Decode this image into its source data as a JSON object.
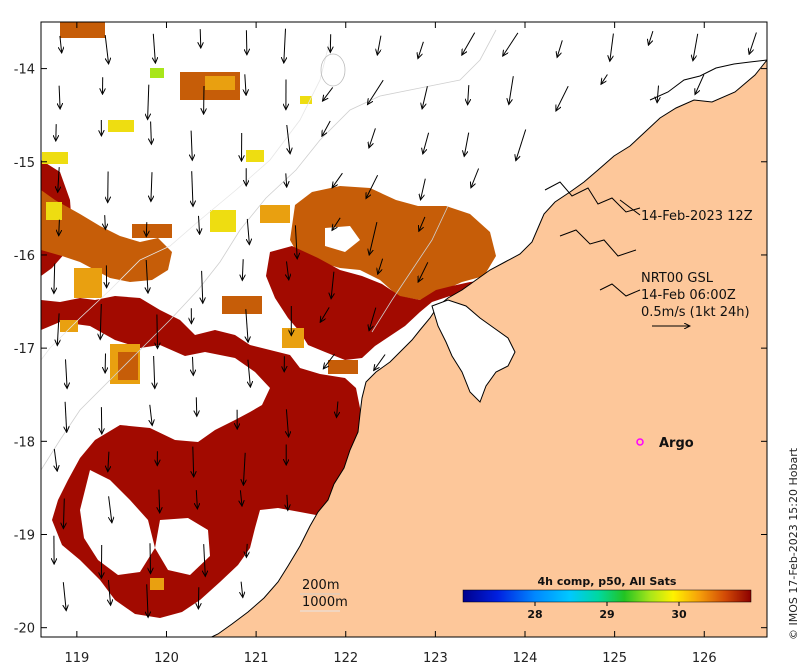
{
  "map": {
    "lon_ticks": [
      "119",
      "120",
      "121",
      "122",
      "123",
      "124",
      "125",
      "126"
    ],
    "lat_ticks": [
      "-14",
      "-15",
      "-16",
      "-17",
      "-18",
      "-19",
      "-20"
    ],
    "lon_range": [
      118.6,
      126.7
    ],
    "lat_range": [
      -20.1,
      -13.5
    ],
    "colors": {
      "land": "#fdc79a",
      "ocean": "#ffffff",
      "sst_hot": "#a20a00",
      "sst_warm": "#c65d08",
      "sst_mid": "#e9a010",
      "sst_cool": "#eedd11"
    }
  },
  "annotations": {
    "timestamp": "14-Feb-2023 12Z",
    "current_source": "NRT00 GSL",
    "current_time": "14-Feb 06:00Z",
    "current_scale": "0.5m/s (1kt 24h)",
    "argo_label": "Argo",
    "depth_200": "200m",
    "depth_1000": "1000m"
  },
  "colorbar": {
    "title": "4h comp, p50, All Sats",
    "ticks": [
      "28",
      "29",
      "30"
    ],
    "tick_values": [
      28,
      29,
      30
    ],
    "range": [
      27,
      31
    ]
  },
  "credit": "© IMOS 17-Feb-2023 15:20 Hobart"
}
